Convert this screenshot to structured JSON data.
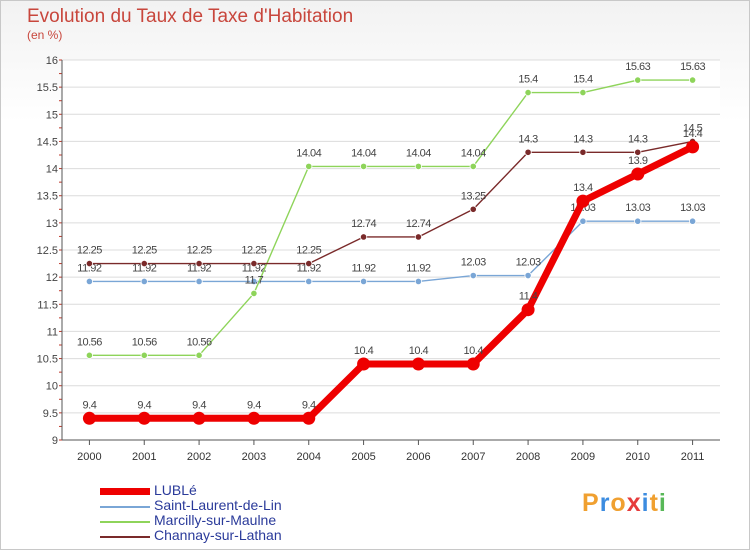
{
  "header": {
    "title": "Evolution du Taux de Taxe d'Habitation",
    "unit_note": "(en %)"
  },
  "brand": {
    "letters": [
      "P",
      "r",
      "o",
      "x",
      "i",
      "t",
      "i"
    ],
    "colors": [
      "#f0a030",
      "#3c8ce0",
      "#f0a030",
      "#e63c3c",
      "#3c8ce0",
      "#f0a030",
      "#58b858"
    ]
  },
  "chart_data": {
    "type": "line",
    "title": "Evolution du Taux de Taxe d'Habitation",
    "ylabel": "(en %)",
    "x": [
      "2000",
      "2001",
      "2002",
      "2003",
      "2004",
      "2005",
      "2006",
      "2007",
      "2008",
      "2009",
      "2010",
      "2011"
    ],
    "ylim": [
      9,
      16
    ],
    "yticks": [
      "9",
      "9.5",
      "10",
      "10.5",
      "11",
      "11.5",
      "12",
      "12.5",
      "13",
      "13.5",
      "14",
      "14.5",
      "15",
      "15.5",
      "16"
    ],
    "grid": "horizontal",
    "legend_position": "bottom-left",
    "series": [
      {
        "name": "Saint-Laurent-de-Lin",
        "color": "#7aa6d6",
        "values": [
          11.92,
          11.92,
          11.92,
          11.92,
          11.92,
          11.92,
          11.92,
          12.03,
          12.03,
          13.03,
          13.03,
          13.03
        ],
        "labels": [
          "11.92",
          "11.92",
          "11.92",
          "11.92",
          "11.92",
          "11.92",
          "11.92",
          "12.03",
          "12.03",
          "13.03",
          "13.03",
          "13.03"
        ]
      },
      {
        "name": "Marcilly-sur-Maulne",
        "color": "#8ed45a",
        "values": [
          10.56,
          10.56,
          10.56,
          11.7,
          14.04,
          14.04,
          14.04,
          14.04,
          15.4,
          15.4,
          15.63,
          15.63
        ],
        "labels": [
          "10.56",
          "10.56",
          "10.56",
          "11.7",
          "14.04",
          "14.04",
          "14.04",
          "14.04",
          "15.4",
          "15.4",
          "15.63",
          "15.63"
        ]
      },
      {
        "name": "Channay-sur-Lathan",
        "color": "#7a2a2a",
        "values": [
          12.25,
          12.25,
          12.25,
          12.25,
          12.25,
          12.74,
          12.74,
          13.25,
          14.3,
          14.3,
          14.3,
          14.5
        ],
        "labels": [
          "12.25",
          "12.25",
          "12.25",
          "12.25",
          "12.25",
          "12.74",
          "12.74",
          "13.25",
          "14.3",
          "14.3",
          "14.3",
          "14.5"
        ]
      },
      {
        "name": "LUBLé",
        "color": "#ee0000",
        "values": [
          9.4,
          9.4,
          9.4,
          9.4,
          9.4,
          10.4,
          10.4,
          10.4,
          11.4,
          13.4,
          13.9,
          14.4
        ],
        "labels": [
          "9.4",
          "9.4",
          "9.4",
          "9.4",
          "9.4",
          "10.4",
          "10.4",
          "10.4",
          "11.4",
          "13.4",
          "13.9",
          "14.4"
        ]
      }
    ],
    "legend": [
      "LUBLé",
      "Saint-Laurent-de-Lin",
      "Marcilly-sur-Maulne",
      "Channay-sur-Lathan"
    ]
  }
}
